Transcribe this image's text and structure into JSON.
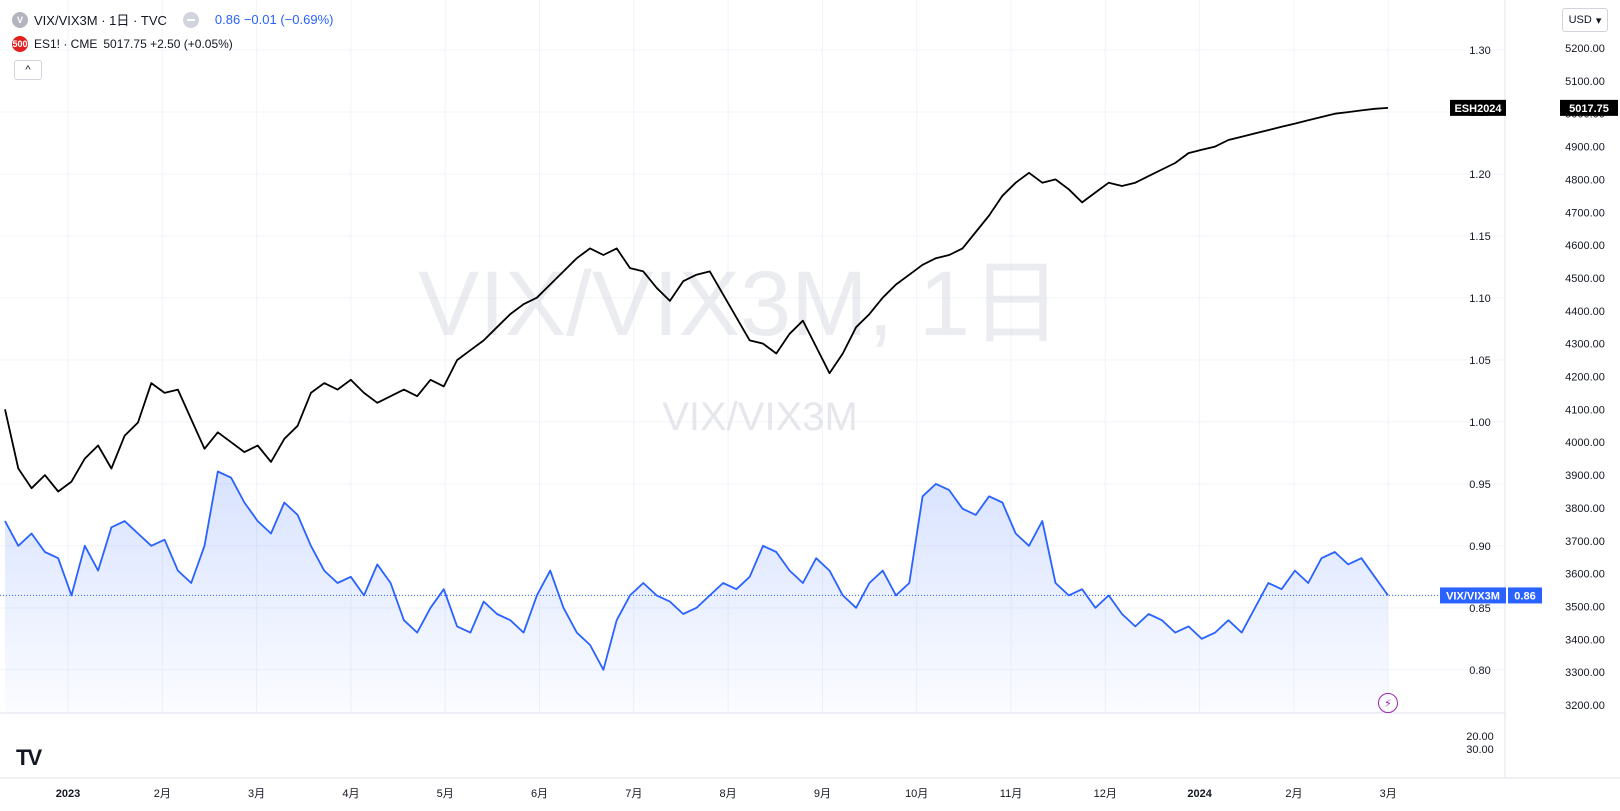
{
  "header": {
    "main_symbol": {
      "icon_letter": "V",
      "title": "VIX/VIX3M · 1日 · TVC",
      "value_text": "0.86 −0.01 (−0.69%)"
    },
    "compare_symbol": {
      "icon_text": "500",
      "title": "ES1! · CME",
      "value_text": "5017.75 +2.50 (+0.05%)"
    },
    "collapse_label": "^",
    "currency_label": "USD",
    "currency_arrow": "▾",
    "logo_text": "TV"
  },
  "watermark": {
    "main": "VIX/VIX3M, 1日",
    "sub": "VIX/VIX3M"
  },
  "colors": {
    "vix": "#2962ff",
    "es": "#000000",
    "grid": "#f0f3fa",
    "axis_text": "#131722",
    "es_icon": "#e02020",
    "bolt": "#9c27b0"
  },
  "chart_data": {
    "type": "line",
    "x_axis": {
      "ticks": [
        "2023",
        "2月",
        "3月",
        "4月",
        "5月",
        "6月",
        "7月",
        "8月",
        "9月",
        "10月",
        "11月",
        "12月",
        "2024",
        "2月",
        "3月"
      ],
      "bold_ticks": [
        "2023",
        "2024"
      ]
    },
    "y_axis_ratio": {
      "ticks": [
        "1.30",
        "1.25",
        "1.20",
        "1.15",
        "1.10",
        "1.05",
        "1.00",
        "0.95",
        "0.90",
        "0.85",
        "0.80"
      ],
      "range": [
        0.77,
        1.3
      ]
    },
    "y_axis_es": {
      "ticks": [
        "5200.00",
        "5100.00",
        "5000.00",
        "4900.00",
        "4800.00",
        "4700.00",
        "4600.00",
        "4500.00",
        "4400.00",
        "4300.00",
        "4200.00",
        "4100.00",
        "4000.00",
        "3900.00",
        "3800.00",
        "3700.00",
        "3600.00",
        "3500.00",
        "3400.00",
        "3300.00",
        "3200.00"
      ],
      "range": [
        3200,
        5200
      ]
    },
    "lower_pane": {
      "ticks": [
        "20.00",
        "30.00"
      ]
    },
    "series": [
      {
        "name": "VIX/VIX3M",
        "axis": "ratio",
        "last_value": "0.86",
        "x": [
          0,
          4,
          8,
          12,
          16,
          20,
          24,
          28,
          32,
          36,
          40,
          44,
          48,
          52,
          56,
          60,
          64,
          68,
          72,
          76,
          80,
          84,
          88,
          92,
          96,
          100,
          104,
          108,
          112,
          116,
          120,
          124,
          128,
          132,
          136,
          140,
          144,
          148,
          152,
          156,
          160,
          164,
          168,
          172,
          176,
          180,
          184,
          188,
          192,
          196,
          200,
          204,
          208,
          212,
          216,
          220,
          224,
          228,
          232,
          236,
          240,
          244,
          248,
          252,
          256,
          260,
          264,
          268,
          272,
          276,
          280,
          284,
          288,
          292,
          296,
          300,
          304,
          308,
          312,
          316,
          320,
          324,
          328,
          332,
          336,
          340,
          344,
          348,
          352,
          356,
          360,
          364,
          368,
          372,
          376,
          380,
          384,
          388,
          392,
          396,
          400,
          404,
          408,
          412,
          416
        ],
        "values": [
          0.92,
          0.9,
          0.91,
          0.895,
          0.89,
          0.86,
          0.9,
          0.88,
          0.915,
          0.92,
          0.91,
          0.9,
          0.905,
          0.88,
          0.87,
          0.9,
          0.96,
          0.955,
          0.935,
          0.92,
          0.91,
          0.935,
          0.925,
          0.9,
          0.88,
          0.87,
          0.875,
          0.86,
          0.885,
          0.87,
          0.84,
          0.83,
          0.85,
          0.865,
          0.835,
          0.83,
          0.855,
          0.845,
          0.84,
          0.83,
          0.86,
          0.88,
          0.85,
          0.83,
          0.82,
          0.8,
          0.84,
          0.86,
          0.87,
          0.86,
          0.855,
          0.845,
          0.85,
          0.86,
          0.87,
          0.865,
          0.875,
          0.9,
          0.895,
          0.88,
          0.87,
          0.89,
          0.88,
          0.86,
          0.85,
          0.87,
          0.88,
          0.86,
          0.87,
          0.94,
          0.95,
          0.945,
          0.93,
          0.925,
          0.94,
          0.935,
          0.91,
          0.9,
          0.92,
          0.87,
          0.86,
          0.865,
          0.85,
          0.86,
          0.845,
          0.835,
          0.845,
          0.84,
          0.83,
          0.835,
          0.825,
          0.83,
          0.84,
          0.83,
          0.85,
          0.87,
          0.865,
          0.88,
          0.87,
          0.89,
          0.895,
          0.885,
          0.89,
          0.875,
          0.86
        ]
      },
      {
        "name": "ES1!",
        "axis": "es",
        "last_value": "5017.75",
        "label": "ESH2024",
        "x": [
          0,
          4,
          8,
          12,
          16,
          20,
          24,
          28,
          32,
          36,
          40,
          44,
          48,
          52,
          56,
          60,
          64,
          68,
          72,
          76,
          80,
          84,
          88,
          92,
          96,
          100,
          104,
          108,
          112,
          116,
          120,
          124,
          128,
          132,
          136,
          140,
          144,
          148,
          152,
          156,
          160,
          164,
          168,
          172,
          176,
          180,
          184,
          188,
          192,
          196,
          200,
          204,
          208,
          212,
          216,
          220,
          224,
          228,
          232,
          236,
          240,
          244,
          248,
          252,
          256,
          260,
          264,
          268,
          272,
          276,
          280,
          284,
          288,
          292,
          296,
          300,
          304,
          308,
          312,
          316,
          320,
          324,
          328,
          332,
          336,
          340,
          344,
          348,
          352,
          356,
          360,
          364,
          368,
          372,
          376,
          380,
          384,
          388,
          392,
          396,
          400,
          404,
          408,
          412,
          416
        ],
        "values": [
          4100,
          3920,
          3860,
          3900,
          3850,
          3880,
          3950,
          3990,
          3920,
          4020,
          4060,
          4180,
          4150,
          4160,
          4070,
          3980,
          4030,
          4000,
          3970,
          3990,
          3940,
          4010,
          4050,
          4150,
          4180,
          4160,
          4190,
          4150,
          4120,
          4140,
          4160,
          4140,
          4190,
          4170,
          4250,
          4280,
          4310,
          4350,
          4390,
          4420,
          4440,
          4480,
          4520,
          4560,
          4590,
          4570,
          4590,
          4530,
          4520,
          4470,
          4430,
          4490,
          4510,
          4520,
          4450,
          4380,
          4310,
          4300,
          4270,
          4330,
          4370,
          4290,
          4210,
          4270,
          4350,
          4390,
          4440,
          4480,
          4510,
          4540,
          4560,
          4570,
          4590,
          4640,
          4690,
          4750,
          4790,
          4820,
          4790,
          4800,
          4770,
          4730,
          4760,
          4790,
          4780,
          4790,
          4810,
          4830,
          4850,
          4880,
          4890,
          4900,
          4920,
          4930,
          4940,
          4950,
          4960,
          4970,
          4980,
          4990,
          5000,
          5005,
          5010,
          5015,
          5017.75
        ]
      }
    ]
  }
}
